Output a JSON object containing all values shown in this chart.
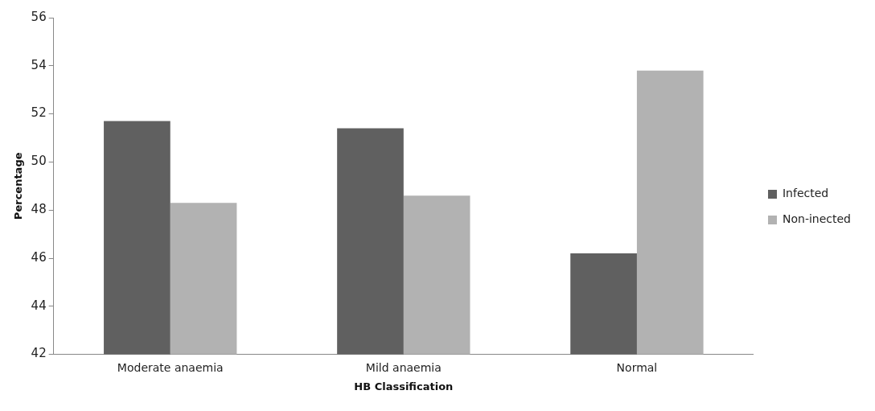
{
  "chart_data": {
    "type": "bar",
    "xlabel": "HB Classification",
    "ylabel": "Percentage",
    "categories": [
      "Moderate anaemia",
      "Mild anaemia",
      "Normal"
    ],
    "series": [
      {
        "name": "Infected",
        "color": "#606060",
        "values": [
          51.7,
          51.4,
          46.2
        ]
      },
      {
        "name": "Non-inected",
        "color": "#b2b2b2",
        "values": [
          48.3,
          48.6,
          53.8
        ]
      }
    ],
    "ylim": [
      42,
      56
    ],
    "yticks": [
      42,
      44,
      46,
      48,
      50,
      52,
      54,
      56
    ],
    "grid": false,
    "legend": "right"
  }
}
